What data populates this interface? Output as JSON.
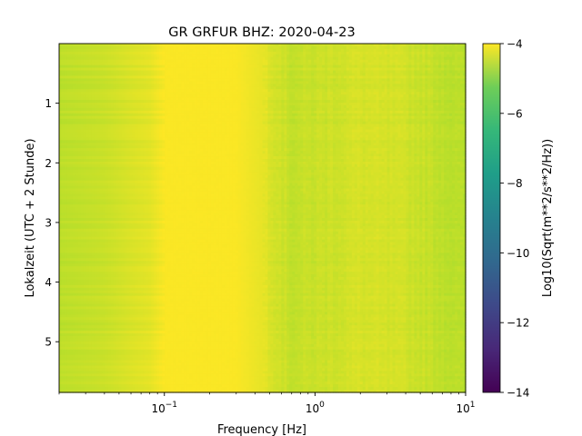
{
  "chart_data": {
    "type": "heatmap",
    "title": "GR GRFUR  BHZ: 2020-04-23",
    "xlabel": "Frequency [Hz]",
    "ylabel": "Lokalzeit (UTC + 2 Stunde)",
    "x_scale": "log",
    "xlim": [
      0.02,
      10
    ],
    "ylim": [
      5.85,
      0.0
    ],
    "x_ticks": [
      {
        "value": 0.1,
        "base": "10",
        "exp": "−1"
      },
      {
        "value": 1,
        "base": "10",
        "exp": "0"
      },
      {
        "value": 10,
        "base": "10",
        "exp": "1"
      }
    ],
    "y_ticks": [
      {
        "value": 1,
        "label": "1"
      },
      {
        "value": 2,
        "label": "2"
      },
      {
        "value": 3,
        "label": "3"
      },
      {
        "value": 4,
        "label": "4"
      },
      {
        "value": 5,
        "label": "5"
      }
    ],
    "colorbar": {
      "label": "Log10(Sqrt(m**2/s**2/Hz))",
      "colormap": "viridis",
      "clim": [
        -14,
        -4
      ],
      "ticks": [
        {
          "value": -4,
          "label": "−4"
        },
        {
          "value": -6,
          "label": "−6"
        },
        {
          "value": -8,
          "label": "−8"
        },
        {
          "value": -10,
          "label": "−10"
        },
        {
          "value": -12,
          "label": "−12"
        },
        {
          "value": -14,
          "label": "−14"
        }
      ]
    },
    "frequency_profile_hz": [
      {
        "f": 0.02,
        "value": -5.0
      },
      {
        "f": 0.04,
        "value": -4.8
      },
      {
        "f": 0.06,
        "value": -4.55
      },
      {
        "f": 0.08,
        "value": -4.4
      },
      {
        "f": 0.1,
        "value": -4.05
      },
      {
        "f": 0.3,
        "value": -4.05
      },
      {
        "f": 0.45,
        "value": -4.35
      },
      {
        "f": 0.7,
        "value": -4.9
      },
      {
        "f": 1.0,
        "value": -4.8
      },
      {
        "f": 2.0,
        "value": -4.6
      },
      {
        "f": 4.0,
        "value": -4.7
      },
      {
        "f": 10.0,
        "value": -5.1
      }
    ]
  }
}
